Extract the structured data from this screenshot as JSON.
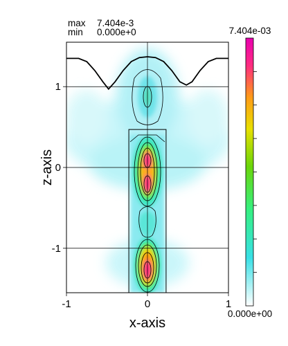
{
  "stats": {
    "max_label": "max",
    "max_value": "7.404e-3",
    "min_label": "min",
    "min_value": "0.000e+0"
  },
  "chart_data": {
    "type": "heatmap",
    "xlabel": "x-axis",
    "ylabel": "z-axis",
    "xlim": [
      -1,
      1
    ],
    "ylim": [
      -1.55,
      1.55
    ],
    "x_ticks": [
      "-1",
      "0",
      "1"
    ],
    "y_ticks": [
      "1",
      "0",
      "-1"
    ],
    "x_tick_values": [
      -1,
      0,
      1
    ],
    "y_tick_values": [
      1,
      0,
      -1
    ],
    "grid": true,
    "colorbar": {
      "max_label": "7.404e-03",
      "min_label": "0.000e+00",
      "range": [
        0,
        0.007404
      ],
      "colors": [
        "#ffffff",
        "#38e0e6",
        "#35f080",
        "#6ad60a",
        "#e8e000",
        "#ff9a18",
        "#ff2a82",
        "#e800b0"
      ]
    },
    "hotspots": [
      {
        "x": 0.0,
        "z": 0.1,
        "value": 0.0074
      },
      {
        "x": 0.0,
        "z": -0.2,
        "value": 0.0072
      },
      {
        "x": 0.0,
        "z": -1.3,
        "value": 0.007
      },
      {
        "x": 0.0,
        "z": 0.92,
        "value": 0.0021
      }
    ],
    "surface_profile": {
      "x": [
        -1.0,
        -0.85,
        -0.75,
        -0.65,
        -0.55,
        -0.48,
        -0.4,
        -0.3,
        -0.2,
        -0.1,
        0.0,
        0.1,
        0.2,
        0.3,
        0.4,
        0.48,
        0.55,
        0.65,
        0.75,
        0.85,
        1.0
      ],
      "z": [
        1.35,
        1.35,
        1.31,
        1.2,
        1.06,
        0.97,
        1.06,
        1.2,
        1.31,
        1.36,
        1.37,
        1.36,
        1.31,
        1.2,
        1.06,
        1.02,
        1.06,
        1.2,
        1.31,
        1.35,
        1.35
      ]
    },
    "waveguide_box": {
      "x": [
        -0.23,
        0.23
      ],
      "z": [
        -1.55,
        0.47
      ]
    }
  }
}
